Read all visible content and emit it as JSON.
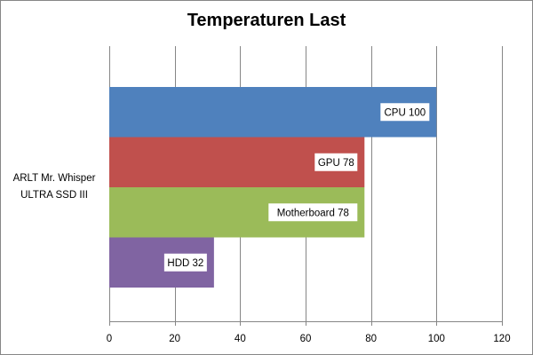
{
  "chart_data": {
    "type": "bar",
    "orientation": "horizontal",
    "title": "Temperaturen Last",
    "categories": [
      "ARLT Mr. Whisper ULTRA SSD III"
    ],
    "category_label_lines": [
      "ARLT Mr. Whisper",
      "ULTRA SSD III"
    ],
    "series": [
      {
        "name": "CPU",
        "values": [
          100
        ],
        "color": "#4f81bd",
        "data_label": "CPU 100"
      },
      {
        "name": "GPU",
        "values": [
          78
        ],
        "color": "#c0504d",
        "data_label": "GPU 78"
      },
      {
        "name": "Motherboard",
        "values": [
          78
        ],
        "color": "#9bbb59",
        "data_label": "Motherboard 78"
      },
      {
        "name": "HDD",
        "values": [
          32
        ],
        "color": "#8064a2",
        "data_label": "HDD 32"
      }
    ],
    "xlim": [
      0,
      120
    ],
    "xticks": [
      "0",
      "20",
      "40",
      "60",
      "80",
      "100",
      "120"
    ],
    "xlabel": "",
    "ylabel": "",
    "grid": true,
    "legend": "none"
  }
}
